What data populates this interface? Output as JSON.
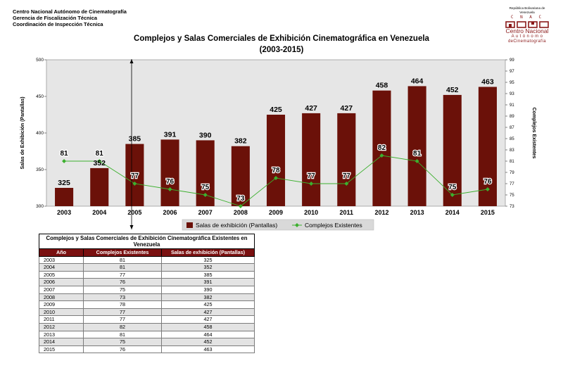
{
  "header": {
    "org_lines": [
      "Centro Nacional Autónomo de Cinematografía",
      "Gerencia de Fiscalización Técnica",
      "Coordinación de Inspección Técnica"
    ],
    "logo": {
      "top_text": "República Bolivariana de Venezuela",
      "letters": "C N A C",
      "name": "Centro Nacional",
      "sub1": "A u t ó n o m o",
      "sub2": "deCinematografía"
    }
  },
  "colors": {
    "bar": "#6b1109",
    "line": "#3cb02e",
    "plot_bg": "#e6e6e6",
    "table_header": "#7a1010"
  },
  "chart_data": {
    "type": "bar",
    "title": "Complejos y Salas Comerciales de Exhibición Cinematográfica en Venezuela",
    "subtitle": "(2003-2015)",
    "categories": [
      "2003",
      "2004",
      "2005",
      "2006",
      "2007",
      "2008",
      "2009",
      "2010",
      "2011",
      "2012",
      "2013",
      "2014",
      "2015"
    ],
    "series": [
      {
        "name": "Salas de exhibición (Pantallas)",
        "type": "bar",
        "axis": "left",
        "values": [
          325,
          352,
          385,
          391,
          390,
          382,
          425,
          427,
          427,
          458,
          464,
          452,
          463
        ]
      },
      {
        "name": "Complejos Existentes",
        "type": "line",
        "axis": "right",
        "values": [
          81,
          81,
          77,
          76,
          75,
          73,
          78,
          77,
          77,
          82,
          81,
          75,
          76
        ]
      }
    ],
    "ylabel": "Salas de Exhibición (Pantallas)",
    "y2label": "Complejos Existentes",
    "ylim": [
      300,
      500
    ],
    "yticks": [
      300,
      350,
      400,
      450,
      500
    ],
    "y2lim": [
      73,
      99
    ],
    "y2ticks": [
      73,
      75,
      77,
      79,
      81,
      83,
      85,
      87,
      89,
      91,
      93,
      95,
      97,
      99
    ],
    "grid": false,
    "legend": "bottom"
  },
  "table": {
    "title": "Complejos y Salas Comerciales de Exhibición Cinematográfica Existentes en Venezuela",
    "headers": [
      "Año",
      "Complejos Existentes",
      "Salas de exhibición (Pantallas)"
    ],
    "rows": [
      [
        "2003",
        "81",
        "325"
      ],
      [
        "2004",
        "81",
        "352"
      ],
      [
        "2005",
        "77",
        "385"
      ],
      [
        "2006",
        "76",
        "391"
      ],
      [
        "2007",
        "75",
        "390"
      ],
      [
        "2008",
        "73",
        "382"
      ],
      [
        "2009",
        "78",
        "425"
      ],
      [
        "2010",
        "77",
        "427"
      ],
      [
        "2011",
        "77",
        "427"
      ],
      [
        "2012",
        "82",
        "458"
      ],
      [
        "2013",
        "81",
        "464"
      ],
      [
        "2014",
        "75",
        "452"
      ],
      [
        "2015",
        "76",
        "463"
      ]
    ]
  }
}
